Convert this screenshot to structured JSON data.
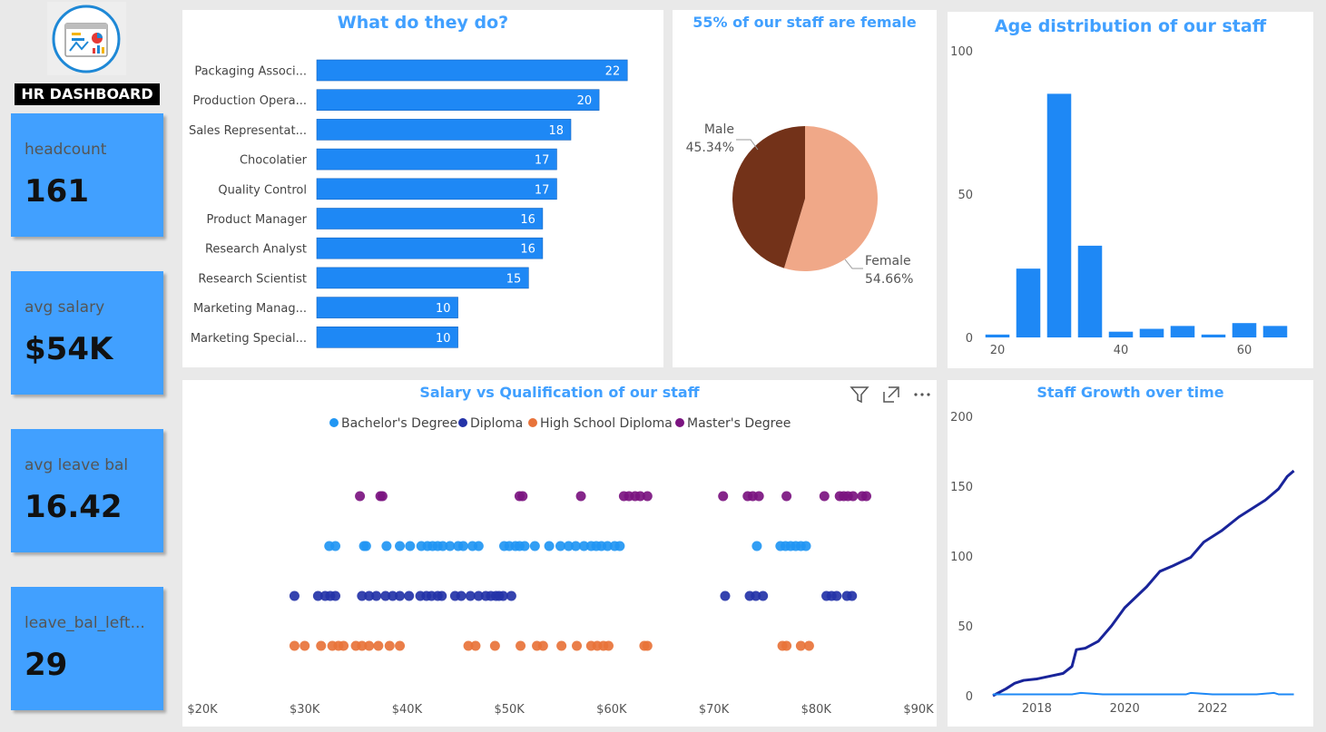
{
  "app": {
    "title": "HR DASHBOARD"
  },
  "kpis": [
    {
      "label": "headcount",
      "value": "161"
    },
    {
      "label": "avg salary",
      "value": "$54K"
    },
    {
      "label": "avg leave bal",
      "value": "16.42"
    },
    {
      "label": "leave_bal_left...",
      "value": "29"
    }
  ],
  "colors": {
    "accent": "#41a0ff",
    "kpi_bg": "#41a0ff",
    "bar": "#1e88f5",
    "male": "#733219",
    "female": "#f0a888",
    "bachelor": "#2196f3",
    "diploma": "#2433a8",
    "highschool": "#e8733a",
    "masters": "#7b1480",
    "growth": "#19249a"
  },
  "visual_header": {
    "icons": [
      "filter-icon",
      "focus-mode-icon",
      "more-options-icon"
    ]
  },
  "chart_data": [
    {
      "id": "roles",
      "type": "bar",
      "orientation": "horizontal",
      "title": "What do they do?",
      "categories": [
        "Packaging Associ...",
        "Production Opera...",
        "Sales Representat...",
        "Chocolatier",
        "Quality Control",
        "Product Manager",
        "Research Analyst",
        "Research Scientist",
        "Marketing Manag...",
        "Marketing Special..."
      ],
      "values": [
        22,
        20,
        18,
        17,
        17,
        16,
        16,
        15,
        10,
        10
      ],
      "xlim": [
        0,
        22.5
      ]
    },
    {
      "id": "gender",
      "type": "pie",
      "title": "55% of our staff are female",
      "slices": [
        {
          "name": "Male",
          "value": 45.34,
          "label": "45.34%"
        },
        {
          "name": "Female",
          "value": 54.66,
          "label": "54.66%"
        }
      ]
    },
    {
      "id": "age",
      "type": "bar",
      "title": "Age distribution of our staff",
      "x": [
        20,
        25,
        30,
        35,
        40,
        45,
        50,
        55,
        60,
        65
      ],
      "values": [
        1,
        24,
        85,
        32,
        2,
        3,
        4,
        1,
        5,
        4
      ],
      "ylim": [
        0,
        100
      ],
      "yticks": [
        "0",
        "50",
        "100"
      ],
      "xticks": [
        "20",
        "40",
        "60"
      ],
      "xlim": [
        17.5,
        67.5
      ]
    },
    {
      "id": "salary",
      "type": "scatter",
      "title": "Salary vs Qualification of our staff",
      "xlim": [
        20000,
        90000
      ],
      "xticks": [
        "$20K",
        "$30K",
        "$40K",
        "$50K",
        "$60K",
        "$70K",
        "$80K",
        "$90K"
      ],
      "series": [
        {
          "name": "Bachelor's Degree",
          "color": "#2196f3",
          "x": [
            32400,
            33000,
            35800,
            36000,
            38000,
            39300,
            40300,
            41400,
            42000,
            42500,
            43000,
            43500,
            44200,
            45000,
            45500,
            46400,
            47000,
            49500,
            50000,
            50600,
            51000,
            51500,
            52500,
            53900,
            55000,
            55800,
            56500,
            57300,
            58000,
            58500,
            59000,
            59600,
            60300,
            60800,
            74200,
            76500,
            77000,
            77500,
            78000,
            78500,
            79000
          ]
        },
        {
          "name": "Diploma",
          "color": "#2433a8",
          "x": [
            29000,
            31300,
            32000,
            32500,
            33000,
            35600,
            36300,
            37000,
            37900,
            38600,
            39300,
            40200,
            41300,
            41900,
            42400,
            43000,
            43400,
            44700,
            45300,
            46200,
            47000,
            47700,
            48200,
            48700,
            49000,
            49400,
            50200,
            71100,
            73500,
            74100,
            74800,
            81000,
            81500,
            82000,
            83000,
            83500
          ]
        },
        {
          "name": "High School Diploma",
          "color": "#e8733a",
          "x": [
            29000,
            30000,
            31600,
            32700,
            33300,
            33800,
            35000,
            35600,
            36300,
            37200,
            38300,
            39300,
            46000,
            46700,
            48600,
            51100,
            52700,
            53300,
            55100,
            56600,
            58000,
            58600,
            59200,
            59700,
            63200,
            63500,
            76700,
            77100,
            78500,
            79300
          ]
        },
        {
          "name": "Master's Degree",
          "color": "#7b1480",
          "x": [
            35400,
            37400,
            37600,
            51000,
            51300,
            57000,
            61200,
            61700,
            62300,
            62800,
            63500,
            70900,
            73300,
            73800,
            74400,
            77100,
            80800,
            82300,
            82700,
            83100,
            83600,
            84500,
            84900
          ]
        }
      ]
    },
    {
      "id": "growth",
      "type": "line",
      "title": "Staff Growth over time",
      "xlim": [
        2017,
        2023.9
      ],
      "ylim": [
        0,
        200
      ],
      "yticks": [
        "0",
        "50",
        "100",
        "150",
        "200"
      ],
      "xticks": [
        "2018",
        "2020",
        "2022"
      ],
      "series": [
        {
          "name": "cumulative",
          "x": [
            2017.0,
            2017.3,
            2017.5,
            2017.7,
            2018.0,
            2018.3,
            2018.6,
            2018.8,
            2018.9,
            2019.1,
            2019.4,
            2019.7,
            2020.0,
            2020.3,
            2020.5,
            2020.8,
            2021.1,
            2021.5,
            2021.8,
            2022.2,
            2022.6,
            2022.9,
            2023.2,
            2023.5,
            2023.7,
            2023.85
          ],
          "y": [
            0,
            5,
            9,
            11,
            12,
            14,
            16,
            21,
            33,
            34,
            39,
            50,
            63,
            72,
            78,
            89,
            93,
            99,
            110,
            118,
            128,
            134,
            140,
            148,
            157,
            161
          ]
        },
        {
          "name": "monthly",
          "x": [
            2017.0,
            2017.5,
            2018.0,
            2018.8,
            2019.0,
            2019.5,
            2020.0,
            2020.5,
            2021.0,
            2021.4,
            2021.5,
            2022.0,
            2022.5,
            2023.0,
            2023.4,
            2023.5,
            2023.85
          ],
          "y": [
            1,
            1,
            1,
            1,
            2,
            1,
            1,
            1,
            1,
            1,
            2,
            1,
            1,
            1,
            2,
            1,
            1
          ]
        }
      ]
    }
  ]
}
